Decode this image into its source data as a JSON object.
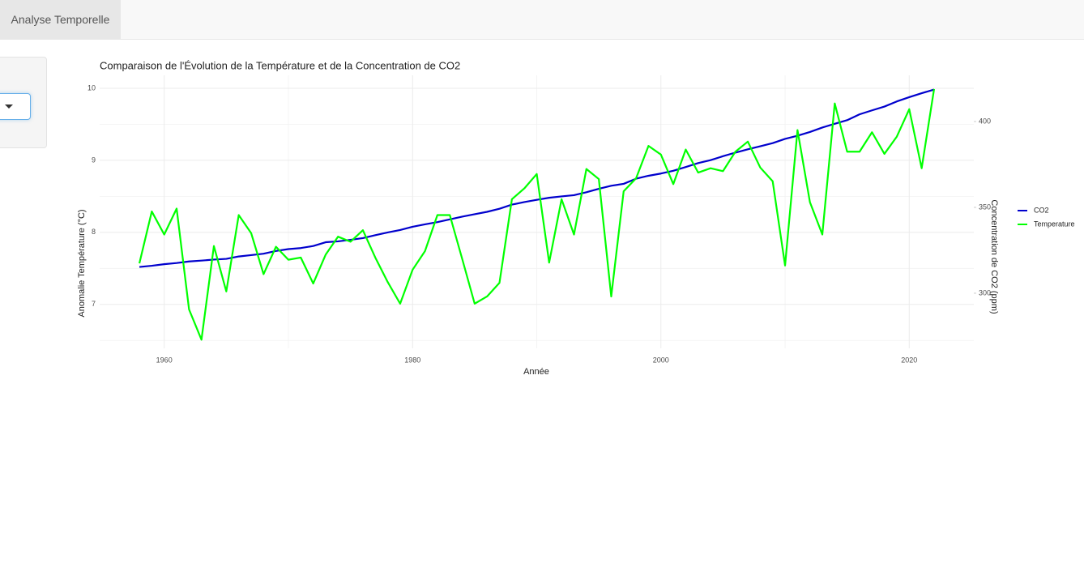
{
  "navbar": {
    "tab": "Analyse Temporelle"
  },
  "chart_data": {
    "type": "line",
    "title": "Comparaison de l'Évolution de la Température et de la Concentration de CO2",
    "x_label": "Année",
    "y_label": "Anomalie Température (°C)",
    "y2_label": "Concentration de CO2 (ppm)",
    "x": [
      1958,
      1959,
      1960,
      1961,
      1962,
      1963,
      1964,
      1965,
      1966,
      1967,
      1968,
      1969,
      1970,
      1971,
      1972,
      1973,
      1974,
      1975,
      1976,
      1977,
      1978,
      1979,
      1980,
      1981,
      1982,
      1983,
      1984,
      1985,
      1986,
      1987,
      1988,
      1989,
      1990,
      1991,
      1992,
      1993,
      1994,
      1995,
      1996,
      1997,
      1998,
      1999,
      2000,
      2001,
      2002,
      2003,
      2004,
      2005,
      2006,
      2007,
      2008,
      2009,
      2010,
      2011,
      2012,
      2013,
      2014,
      2015,
      2016,
      2017,
      2018,
      2019,
      2020,
      2021,
      2022
    ],
    "series": [
      {
        "name": "CO2",
        "color": "#0000cd",
        "axis": "y2",
        "values": [
          315.3,
          316.0,
          316.9,
          317.6,
          318.5,
          319.0,
          319.6,
          320.0,
          321.4,
          322.2,
          323.0,
          324.6,
          325.7,
          326.3,
          327.5,
          329.7,
          330.2,
          331.1,
          332.1,
          333.8,
          335.4,
          336.8,
          338.7,
          340.1,
          341.4,
          343.0,
          344.6,
          346.0,
          347.4,
          349.2,
          351.6,
          353.1,
          354.4,
          355.6,
          356.4,
          357.1,
          358.8,
          360.8,
          362.6,
          363.7,
          366.7,
          368.4,
          369.7,
          371.3,
          373.5,
          375.8,
          377.5,
          379.8,
          381.9,
          383.8,
          385.6,
          387.4,
          389.9,
          391.7,
          393.9,
          396.5,
          398.7,
          400.8,
          404.2,
          406.5,
          408.7,
          411.7,
          414.2,
          416.5,
          418.6
        ]
      },
      {
        "name": "Temperature",
        "color": "#00ff00",
        "values": [
          7.57,
          8.29,
          7.97,
          8.33,
          6.93,
          6.51,
          7.81,
          7.18,
          8.24,
          7.99,
          7.42,
          7.8,
          7.62,
          7.65,
          7.29,
          7.69,
          7.94,
          7.87,
          8.03,
          7.65,
          7.31,
          7.01,
          7.48,
          7.74,
          8.24,
          8.24,
          7.63,
          7.01,
          7.11,
          7.3,
          8.46,
          8.61,
          8.81,
          7.58,
          8.46,
          7.97,
          8.88,
          8.74,
          7.11,
          8.57,
          8.75,
          9.2,
          9.08,
          8.67,
          9.15,
          8.83,
          8.89,
          8.85,
          9.12,
          9.26,
          8.9,
          8.71,
          7.54,
          9.42,
          8.42,
          7.97,
          9.79,
          9.12,
          9.12,
          9.39,
          9.09,
          9.33,
          9.71,
          8.89,
          9.99
        ]
      }
    ],
    "xlim": [
      1954.8,
      2025.2
    ],
    "xticks": [
      1960,
      1980,
      2000,
      2020
    ],
    "ylim": [
      6.39,
      10.18
    ],
    "yticks": [
      7,
      8,
      9,
      10
    ],
    "y2lim": [
      267.9,
      426.9
    ],
    "y2ticks": [
      300,
      350,
      400
    ],
    "grid": true,
    "legend": "right"
  }
}
